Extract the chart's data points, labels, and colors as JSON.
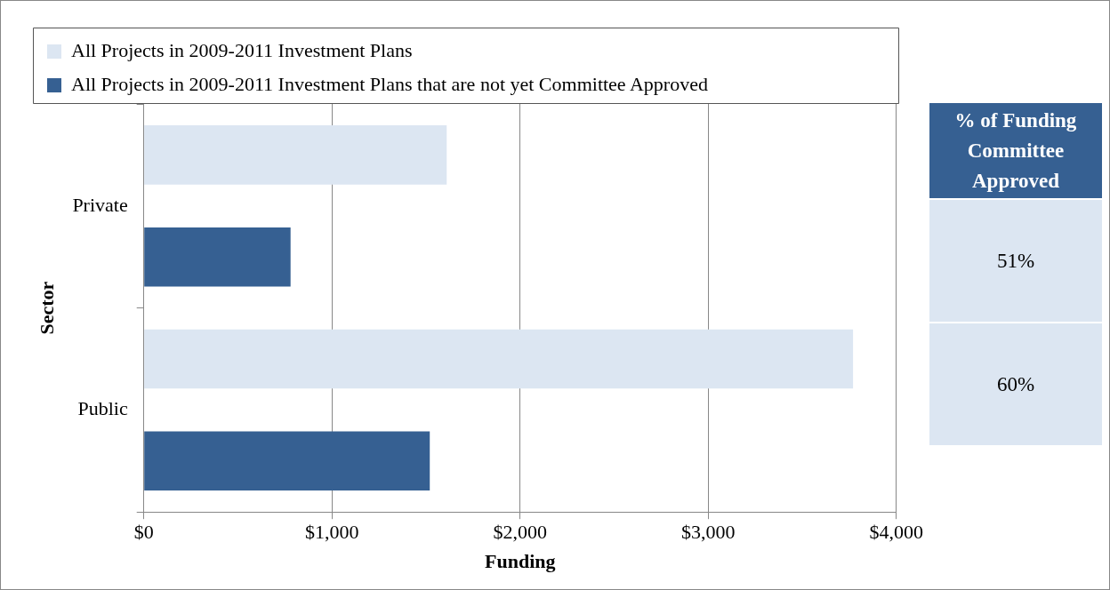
{
  "chart_data": {
    "type": "bar",
    "orientation": "horizontal",
    "xlabel": "Funding",
    "ylabel": "Sector",
    "categories": [
      "Private",
      "Public"
    ],
    "series": [
      {
        "name": "All Projects in 2009-2011 Investment Plans",
        "color": "#dce6f2",
        "values": [
          1610,
          3770
        ]
      },
      {
        "name": "All Projects in 2009-2011 Investment Plans that are not yet Committee Approved",
        "color": "#366092",
        "values": [
          780,
          1520
        ]
      }
    ],
    "xlim": [
      0,
      4000
    ],
    "xticks": [
      {
        "value": 0,
        "label": "$0"
      },
      {
        "value": 1000,
        "label": "$1,000"
      },
      {
        "value": 2000,
        "label": "$2,000"
      },
      {
        "value": 3000,
        "label": "$3,000"
      },
      {
        "value": 4000,
        "label": "$4,000"
      }
    ],
    "grid": "x",
    "legend": "top left",
    "annotations": [
      "% of Funding Committee Approved",
      "51%",
      "60%"
    ]
  }
}
